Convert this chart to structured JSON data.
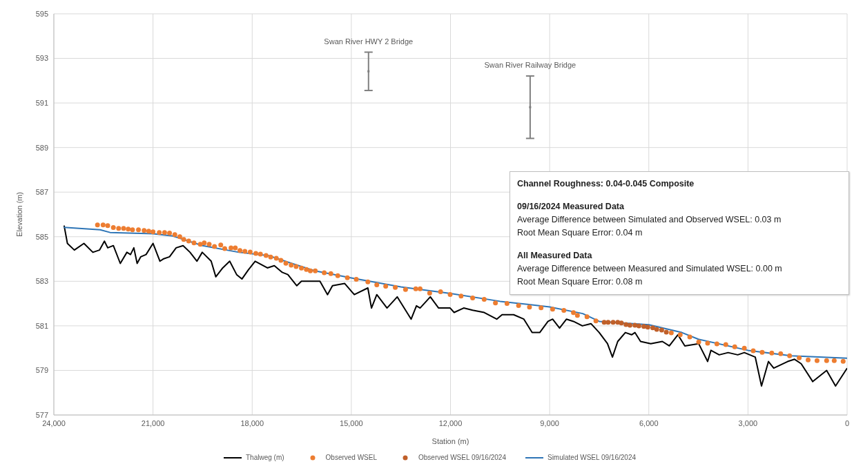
{
  "chart_data": {
    "type": "line",
    "xlabel": "Station (m)",
    "ylabel": "Elevation (m)",
    "xlim": [
      24000,
      0
    ],
    "xticks": [
      {
        "value": 24000,
        "label": "24,000"
      },
      {
        "value": 21000,
        "label": "21,000"
      },
      {
        "value": 18000,
        "label": "18,000"
      },
      {
        "value": 15000,
        "label": "15,000"
      },
      {
        "value": 12000,
        "label": "12,000"
      },
      {
        "value": 9000,
        "label": "9,000"
      },
      {
        "value": 6000,
        "label": "6,000"
      },
      {
        "value": 3000,
        "label": "3,000"
      },
      0
    ],
    "ylim": [
      577,
      595
    ],
    "yticks": [
      577,
      579,
      581,
      583,
      585,
      587,
      589,
      591,
      593,
      595
    ],
    "grid": true,
    "legend": "bottom",
    "series": [
      {
        "name": "Thalweg (m)",
        "marker": "none",
        "color": "#000000",
        "x": [
          23690,
          23590,
          23380,
          23090,
          22820,
          22620,
          22470,
          22370,
          22200,
          21990,
          21790,
          21680,
          21580,
          21480,
          21370,
          21210,
          21000,
          20790,
          20690,
          20500,
          20300,
          20090,
          19880,
          19670,
          19510,
          19240,
          19100,
          18890,
          18680,
          18470,
          18310,
          18120,
          17910,
          17540,
          17330,
          17090,
          16920,
          16650,
          16510,
          16150,
          15950,
          15720,
          15570,
          15200,
          14910,
          14500,
          14390,
          14230,
          13920,
          13610,
          13190,
          13030,
          12920,
          12610,
          12360,
          12010,
          11890,
          11600,
          11330,
          10980,
          10600,
          10440,
          10090,
          9780,
          9530,
          9300,
          9050,
          8910,
          8700,
          8490,
          8280,
          8010,
          7750,
          7500,
          7250,
          7100,
          6940,
          6710,
          6520,
          6420,
          6250,
          5940,
          5590,
          5380,
          5120,
          4910,
          4490,
          4220,
          4120,
          3870,
          3600,
          3310,
          3110,
          2780,
          2590,
          2380,
          2220,
          1800,
          1590,
          1390,
          1040,
          620,
          350,
          0
        ],
        "values": [
          585.5,
          584.7,
          584.4,
          584.7,
          584.3,
          584.4,
          584.8,
          584.5,
          584.6,
          583.8,
          584.3,
          584.2,
          584.5,
          583.8,
          584.1,
          584.2,
          584.7,
          583.9,
          584.0,
          584.1,
          584.5,
          584.6,
          584.3,
          583.9,
          584.3,
          583.9,
          583.2,
          583.6,
          583.9,
          583.3,
          583.1,
          583.5,
          583.9,
          583.6,
          583.7,
          583.4,
          583.3,
          582.8,
          583.0,
          583.0,
          583.0,
          582.4,
          582.8,
          582.9,
          582.4,
          582.7,
          581.8,
          582.4,
          581.8,
          582.3,
          581.3,
          581.9,
          581.8,
          582.3,
          581.8,
          581.8,
          581.6,
          581.8,
          581.7,
          581.6,
          581.3,
          581.5,
          581.5,
          581.3,
          580.7,
          580.7,
          581.2,
          581.3,
          580.9,
          581.3,
          581.2,
          581.0,
          581.1,
          580.7,
          580.2,
          579.6,
          580.3,
          580.7,
          580.6,
          580.7,
          580.3,
          580.2,
          580.3,
          580.1,
          580.6,
          580.1,
          580.2,
          579.4,
          579.9,
          579.7,
          579.8,
          579.7,
          579.8,
          579.6,
          578.3,
          579.4,
          579.1,
          579.4,
          579.5,
          579.3,
          578.5,
          579.0,
          578.3,
          579.1
        ]
      },
      {
        "name": "Observed WSEL",
        "type": "scatter",
        "marker": "circle",
        "color": "#ed7d31",
        "x": [
          22680,
          22510,
          22370,
          22200,
          22040,
          21890,
          21750,
          21620,
          21440,
          21270,
          21130,
          21000,
          20810,
          20650,
          20500,
          20340,
          20190,
          20070,
          19920,
          19760,
          19570,
          19450,
          19300,
          19140,
          18950,
          18830,
          18640,
          18510,
          18370,
          18220,
          18060,
          17890,
          17750,
          17580,
          17440,
          17270,
          17130,
          16980,
          16820,
          16670,
          16510,
          16360,
          16240,
          16090,
          15820,
          15620,
          15410,
          15120,
          14850,
          14500,
          14230,
          13960,
          13670,
          13360,
          13050,
          12920,
          12630,
          12300,
          12010,
          11680,
          11330,
          10980,
          10640,
          10290,
          9940,
          9610,
          9260,
          8910,
          8570,
          8280,
          8160,
          7870,
          7600,
          5320,
          5050,
          4760,
          4490,
          4220,
          3940,
          3670,
          3400,
          3110,
          2840,
          2570,
          2280,
          2010,
          1740,
          1450,
          1180,
          910,
          620,
          390,
          120
        ],
        "values": [
          585.53,
          585.53,
          585.5,
          585.41,
          585.37,
          585.37,
          585.34,
          585.31,
          585.31,
          585.28,
          585.25,
          585.22,
          585.19,
          585.19,
          585.16,
          585.09,
          585.0,
          584.88,
          584.81,
          584.72,
          584.66,
          584.72,
          584.66,
          584.56,
          584.63,
          584.47,
          584.5,
          584.5,
          584.38,
          584.34,
          584.31,
          584.25,
          584.22,
          584.16,
          584.09,
          584.03,
          583.94,
          583.81,
          583.72,
          583.66,
          583.59,
          583.53,
          583.47,
          583.47,
          583.38,
          583.34,
          583.25,
          583.16,
          583.09,
          582.97,
          582.84,
          582.78,
          582.72,
          582.63,
          582.66,
          582.66,
          582.47,
          582.53,
          582.41,
          582.34,
          582.25,
          582.19,
          582.03,
          582.0,
          581.91,
          581.84,
          581.81,
          581.75,
          581.69,
          581.59,
          581.47,
          581.41,
          581.22,
          580.69,
          580.6,
          580.5,
          580.28,
          580.22,
          580.19,
          580.16,
          580.06,
          580.0,
          579.88,
          579.81,
          579.78,
          579.75,
          579.66,
          579.56,
          579.47,
          579.44,
          579.44,
          579.44,
          579.41
        ]
      },
      {
        "name": "Observed WSEL 09/16/2024",
        "type": "scatter",
        "marker": "circle",
        "color": "#c0602a",
        "x": [
          7350,
          7230,
          7080,
          6940,
          6830,
          6690,
          6570,
          6420,
          6300,
          6150,
          6030,
          5880,
          5760,
          5610,
          5470
        ],
        "values": [
          581.16,
          581.16,
          581.16,
          581.16,
          581.13,
          581.06,
          581.03,
          581.03,
          581.0,
          580.97,
          580.94,
          580.91,
          580.84,
          580.81,
          580.72
        ]
      },
      {
        "name": "Simulated WSEL 09/16/2024",
        "marker": "none",
        "color": "#2e75b6",
        "x": [
          23700,
          22600,
          22300,
          21000,
          20400,
          19500,
          18400,
          17500,
          16800,
          16100,
          15000,
          13500,
          12000,
          10500,
          9000,
          8000,
          7500,
          6000,
          5000,
          4500,
          3000,
          1700,
          0
        ],
        "values": [
          585.42,
          585.31,
          585.19,
          585.13,
          585.03,
          584.6,
          584.3,
          584.15,
          583.8,
          583.47,
          583.15,
          582.75,
          582.45,
          582.1,
          581.85,
          581.55,
          581.2,
          581.05,
          580.7,
          580.4,
          579.9,
          579.66,
          579.55
        ]
      },
      {
        "type": "scatter",
        "marker": "square",
        "color": "#7f7f7f",
        "x": [
          14480,
          9590
        ],
        "values": [
          592.42,
          590.81
        ],
        "errors": [
          0.86,
          1.4
        ]
      }
    ],
    "annotations": [
      "Swan River HWY 2 Bridge",
      "Swan River Railway Bridge",
      "Channel Roughness: 0.04-0.045 Composite",
      "09/16/2024 Measured Data",
      "Average Difference between Simulated and Observed WSEL: 0.03 m",
      "Root Mean Square Error: 0.04 m",
      "All Measured Data",
      "Average Difference between Measured and Simulated WSEL: 0.00 m",
      "Root Mean Square Error: 0.08 m"
    ]
  }
}
